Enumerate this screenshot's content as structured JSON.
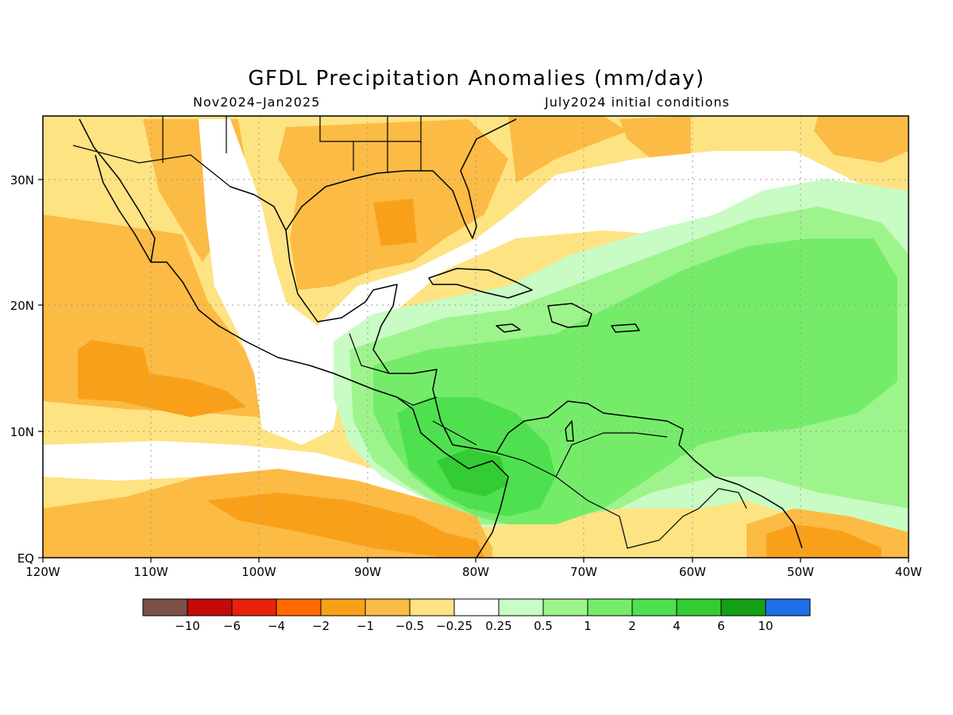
{
  "title": "GFDL Precipitation Anomalies (mm/day)",
  "period": "Nov2024–Jan2025",
  "init": "July2024 initial conditions",
  "lon_labels": [
    "120W",
    "110W",
    "100W",
    "90W",
    "80W",
    "70W",
    "60W",
    "50W",
    "40W"
  ],
  "lat_labels": [
    "EQ",
    "10N",
    "20N",
    "30N"
  ],
  "colorbar": {
    "labels": [
      "−10",
      "−6",
      "−4",
      "−2",
      "−1",
      "−0.5",
      "−0.25",
      "0.25",
      "0.5",
      "1",
      "2",
      "4",
      "6",
      "10"
    ],
    "colors": [
      "#7a5048",
      "#c40a0a",
      "#e8210a",
      "#ff6a00",
      "#f9a01b",
      "#fcbb45",
      "#fee383",
      "#ffffff",
      "#c8fcc4",
      "#9ef48c",
      "#74ec6a",
      "#4fe04f",
      "#33cc33",
      "#14a014",
      "#1e6ee6"
    ]
  }
}
